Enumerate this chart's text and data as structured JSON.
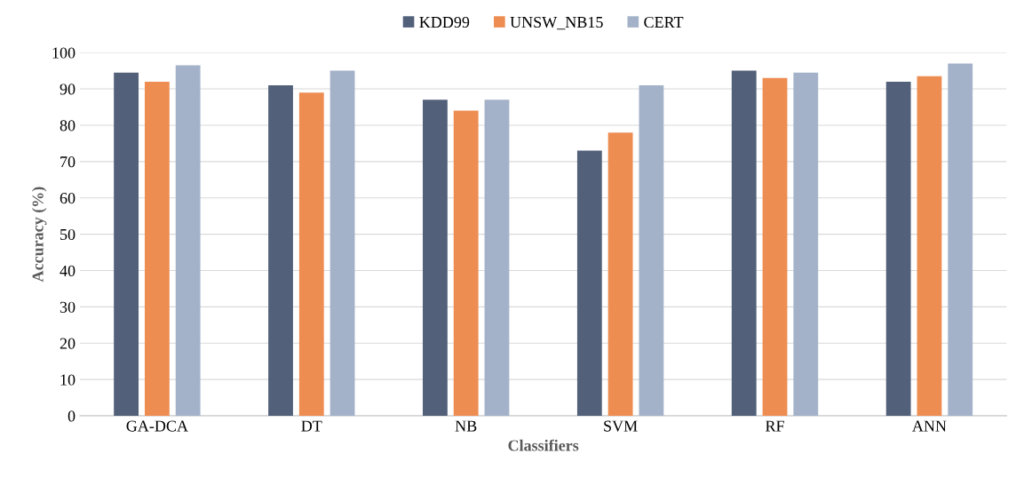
{
  "chart_data": {
    "type": "bar",
    "xlabel": "Classifiers",
    "ylabel": "Accuracy (%)",
    "categories": [
      "GA-DCA",
      "DT",
      "NB",
      "SVM",
      "RF",
      "ANN"
    ],
    "series": [
      {
        "name": "KDD99",
        "color": "#53607a",
        "values": [
          94.5,
          91,
          87,
          73,
          95,
          92
        ]
      },
      {
        "name": "UNSW_NB15",
        "color": "#ee8d52",
        "values": [
          92,
          89,
          84,
          78,
          93,
          93.5
        ]
      },
      {
        "name": "CERT",
        "color": "#a4b2c9",
        "values": [
          96.5,
          95,
          87,
          91,
          94.5,
          97
        ]
      }
    ],
    "ylim": [
      0,
      100
    ],
    "yticks": [
      0,
      10,
      20,
      30,
      40,
      50,
      60,
      70,
      80,
      90,
      100
    ],
    "grid": "y",
    "legend": "top"
  }
}
